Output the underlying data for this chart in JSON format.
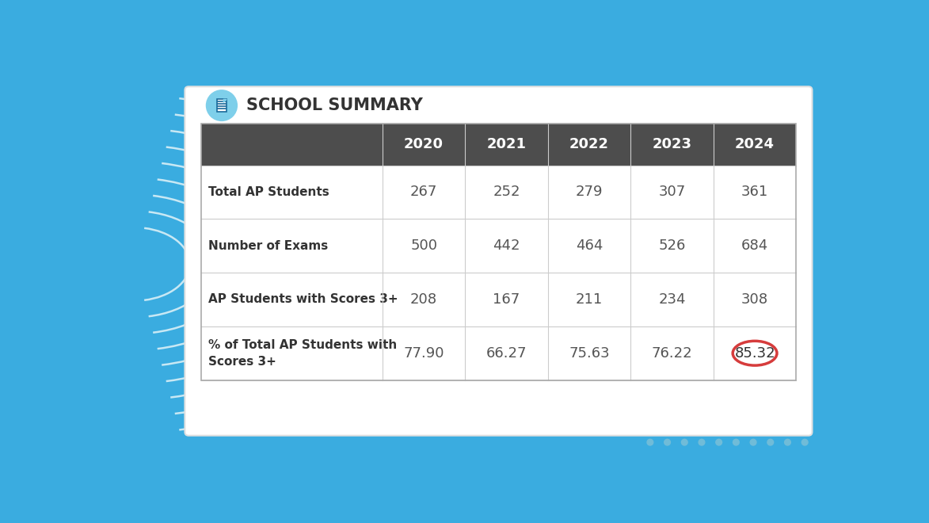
{
  "title": "SCHOOL SUMMARY",
  "years": [
    "2020",
    "2021",
    "2022",
    "2023",
    "2024"
  ],
  "rows": [
    {
      "label": "Total AP Students",
      "values": [
        "267",
        "252",
        "279",
        "307",
        "361"
      ]
    },
    {
      "label": "Number of Exams",
      "values": [
        "500",
        "442",
        "464",
        "526",
        "684"
      ]
    },
    {
      "label": "AP Students with Scores 3+",
      "values": [
        "208",
        "167",
        "211",
        "234",
        "308"
      ]
    },
    {
      "label": "% of Total AP Students with\nScores 3+",
      "values": [
        "77.90",
        "66.27",
        "75.63",
        "76.22",
        "85.32"
      ]
    }
  ],
  "header_bg": "#4d4d4d",
  "header_text_color": "#ffffff",
  "border_color": "#cccccc",
  "label_text_color": "#333333",
  "value_text_color": "#555555",
  "bg_color": "#3aace0",
  "card_bg": "#ffffff",
  "highlight_col": 4,
  "highlight_row": 3,
  "highlight_color": "#d63c3c",
  "icon_bg": "#7ecfea",
  "title_color": "#333333",
  "arc_color": "#c8e8f4",
  "dot_color": "#70bcd8"
}
